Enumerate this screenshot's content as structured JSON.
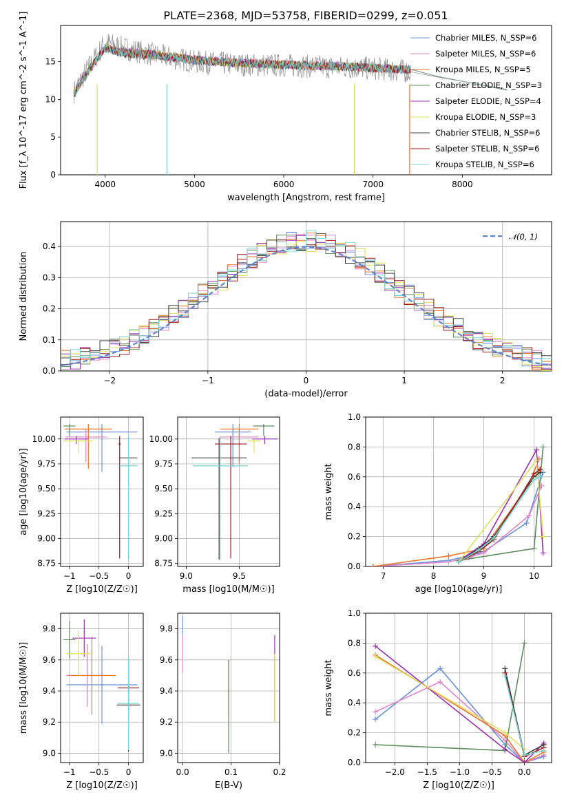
{
  "figure": {
    "title": "PLATE=2368, MJD=53758, FIBERID=0299, z=0.051"
  },
  "colors": {
    "data": "#808080",
    "models": [
      "#6a8fdb",
      "#e083c8",
      "#e8762a",
      "#5e8c5e",
      "#9b2fb4",
      "#dfe05a",
      "#404040",
      "#9e1c1c",
      "#79d6d6"
    ],
    "normal": "#5b84cf"
  },
  "chart_data": [
    {
      "id": "spectrum",
      "type": "line",
      "xlabel": "wavelength [Angstrom, rest frame]",
      "ylabel": "Flux [f_λ 10^-17 erg cm^-2 s^-1 A^-1]",
      "xlim": [
        3500,
        9000
      ],
      "ylim": [
        0,
        19.8
      ],
      "xticks": [
        4000,
        5000,
        6000,
        7000,
        8000
      ],
      "yticks": [
        0,
        5,
        10,
        15
      ],
      "grid": false,
      "legend_position": "top-right",
      "x": [
        3650,
        3800,
        4000,
        4200,
        4500,
        5000,
        5500,
        6000,
        6500,
        6800,
        7000,
        7300,
        7450,
        7700,
        8000,
        8500
      ],
      "series": [
        {
          "name": "data",
          "values": [
            11.0,
            14.0,
            17.5,
            16.8,
            16.0,
            15.0,
            14.6,
            14.5,
            14.3,
            14.2,
            14.1,
            13.8,
            13.6,
            13.0,
            12.4,
            11.2
          ]
        },
        {
          "name": "Chabrier MILES, N_SSP=6",
          "values": [
            10.8,
            13.6,
            16.8,
            16.2,
            15.9,
            15.2,
            14.8,
            14.6,
            14.4,
            14.3,
            14.2,
            14.0,
            13.9,
            13.1,
            12.4,
            11.3
          ]
        },
        {
          "name": "Salpeter MILES, N_SSP=6",
          "values": [
            10.8,
            13.6,
            16.8,
            16.2,
            15.9,
            15.2,
            14.8,
            14.6,
            14.4,
            14.3,
            14.2,
            14.0,
            13.9,
            13.1,
            12.4,
            11.3
          ]
        },
        {
          "name": "Kroupa MILES, N_SSP=5",
          "values": [
            10.7,
            13.5,
            16.9,
            16.2,
            15.9,
            15.2,
            14.8,
            14.6,
            14.4,
            14.3,
            14.2,
            14.0,
            13.9,
            13.1,
            12.4,
            11.3
          ]
        },
        {
          "name": "Chabrier ELODIE, N_SSP=3",
          "values": [
            10.9,
            13.7,
            16.9,
            16.3,
            16.0,
            15.3,
            14.8,
            14.6,
            14.4,
            14.3,
            14.2,
            14.0,
            13.9,
            13.1,
            12.4,
            11.3
          ]
        },
        {
          "name": "Salpeter ELODIE, N_SSP=4",
          "values": [
            10.9,
            13.7,
            16.9,
            16.3,
            16.0,
            15.3,
            14.8,
            14.6,
            14.4,
            14.3,
            14.2,
            14.0,
            13.9,
            13.1,
            12.4,
            11.3
          ]
        },
        {
          "name": "Kroupa ELODIE, N_SSP=3",
          "values": [
            10.9,
            13.7,
            16.9,
            16.3,
            16.0,
            15.3,
            14.8,
            14.6,
            14.4,
            14.3,
            14.2,
            14.0,
            13.9,
            13.1,
            12.4,
            11.3
          ]
        },
        {
          "name": "Chabrier STELIB, N_SSP=6",
          "values": [
            10.7,
            13.6,
            16.8,
            16.1,
            15.9,
            15.2,
            14.8,
            14.6,
            14.4,
            14.3,
            14.2,
            14.0,
            13.9,
            13.1,
            12.4,
            11.3
          ]
        },
        {
          "name": "Salpeter STELIB, N_SSP=6",
          "values": [
            10.7,
            13.6,
            16.8,
            16.1,
            15.9,
            15.2,
            14.8,
            14.6,
            14.4,
            14.3,
            14.2,
            14.0,
            13.9,
            13.1,
            12.4,
            11.3
          ]
        },
        {
          "name": "Kroupa STELIB, N_SSP=6",
          "values": [
            10.7,
            13.6,
            16.8,
            16.1,
            15.9,
            15.2,
            14.8,
            14.6,
            14.4,
            14.3,
            14.2,
            14.0,
            13.9,
            13.1,
            12.4,
            11.3
          ]
        }
      ]
    },
    {
      "id": "residuals",
      "type": "line",
      "xlabel": "(data-model)/error",
      "ylabel": "Normed distribution",
      "xlim": [
        -2.5,
        2.5
      ],
      "ylim": [
        0,
        0.48
      ],
      "xticks": [
        -2,
        -1,
        0,
        1,
        2
      ],
      "yticks": [
        0.0,
        0.1,
        0.2,
        0.3,
        0.4
      ],
      "grid": true,
      "legend_position": "top-right",
      "legend": "N(0,1)",
      "x": [
        -2.5,
        -2.25,
        -2.0,
        -1.75,
        -1.5,
        -1.25,
        -1.0,
        -0.75,
        -0.5,
        -0.25,
        0.0,
        0.25,
        0.5,
        0.75,
        1.0,
        1.25,
        1.5,
        1.75,
        2.0,
        2.25,
        2.5
      ],
      "normal_values": [
        0.018,
        0.032,
        0.054,
        0.086,
        0.13,
        0.183,
        0.242,
        0.301,
        0.352,
        0.387,
        0.399,
        0.387,
        0.352,
        0.301,
        0.242,
        0.183,
        0.13,
        0.086,
        0.054,
        0.032,
        0.018
      ]
    },
    {
      "id": "age-vs-Z",
      "type": "scatter",
      "xlabel": "Z [log10(Z/Z☉)]",
      "ylabel": "age  [log10(age/yr)]",
      "xlim": [
        -1.15,
        0.25
      ],
      "ylim": [
        8.72,
        10.22
      ],
      "xticks": [
        -1,
        -0.5,
        0
      ],
      "yticks": [
        8.75,
        9.0,
        9.25,
        9.5,
        9.75,
        10.0
      ],
      "grid": true,
      "points": [
        {
          "x": -0.45,
          "y": 10.07,
          "x_err": [
            0.6,
            0.6
          ],
          "y_err": [
            0.4,
            0.08
          ]
        },
        {
          "x": -0.72,
          "y": 10.02,
          "x_err": [
            0.35,
            0.35
          ],
          "y_err": [
            0.25,
            0.08
          ]
        },
        {
          "x": -0.68,
          "y": 10.1,
          "x_err": [
            0.4,
            0.4
          ],
          "y_err": [
            0.4,
            0.05
          ]
        },
        {
          "x": -1.0,
          "y": 10.13,
          "x_err": [
            0.1,
            0.1
          ],
          "y_err": [
            0.1,
            0.02
          ]
        },
        {
          "x": -0.88,
          "y": 10.0,
          "x_err": [
            0.2,
            0.2
          ],
          "y_err": [
            0.05,
            0.03
          ]
        },
        {
          "x": -0.85,
          "y": 9.98,
          "x_err": [
            0.25,
            0.25
          ],
          "y_err": [
            0.12,
            0.02
          ]
        },
        {
          "x": 0.0,
          "y": 9.81,
          "x_err": [
            0.15,
            0.15
          ],
          "y_err": [
            1.02,
            0.2
          ]
        },
        {
          "x": -0.15,
          "y": 9.95,
          "x_err": [
            0.02,
            0.02
          ],
          "y_err": [
            1.15,
            0.08
          ]
        },
        {
          "x": 0.0,
          "y": 9.73,
          "x_err": [
            0.15,
            0.15
          ],
          "y_err": [
            0.95,
            0.3
          ]
        }
      ]
    },
    {
      "id": "age-vs-mass",
      "type": "scatter",
      "xlabel": "mass [log10(M/M☉)]",
      "ylabel": "",
      "xlim": [
        8.92,
        9.88
      ],
      "ylim": [
        8.72,
        10.22
      ],
      "xticks": [
        9.0,
        9.5
      ],
      "yticks": [
        8.75,
        9.0,
        9.25,
        9.5,
        9.75,
        10.0
      ],
      "grid": true,
      "points": [
        {
          "x": 9.44,
          "y": 10.07,
          "x_err": [
            0.17,
            0.17
          ],
          "y_err": [
            0.35,
            0.08
          ]
        },
        {
          "x": 9.5,
          "y": 10.02,
          "x_err": [
            0.18,
            0.18
          ],
          "y_err": [
            0.25,
            0.08
          ]
        },
        {
          "x": 9.5,
          "y": 10.1,
          "x_err": [
            0.18,
            0.18
          ],
          "y_err": [
            0.35,
            0.05
          ]
        },
        {
          "x": 9.73,
          "y": 10.13,
          "x_err": [
            0.1,
            0.1
          ],
          "y_err": [
            0.1,
            0.02
          ]
        },
        {
          "x": 9.74,
          "y": 10.0,
          "x_err": [
            0.12,
            0.12
          ],
          "y_err": [
            0.05,
            0.03
          ]
        },
        {
          "x": 9.64,
          "y": 9.98,
          "x_err": [
            0.06,
            0.06
          ],
          "y_err": [
            0.12,
            0.02
          ]
        },
        {
          "x": 9.31,
          "y": 9.81,
          "x_err": [
            0.26,
            0.26
          ],
          "y_err": [
            1.02,
            0.2
          ]
        },
        {
          "x": 9.42,
          "y": 9.95,
          "x_err": [
            0.15,
            0.15
          ],
          "y_err": [
            1.15,
            0.08
          ]
        },
        {
          "x": 9.32,
          "y": 9.73,
          "x_err": [
            0.26,
            0.26
          ],
          "y_err": [
            0.95,
            0.3
          ]
        }
      ]
    },
    {
      "id": "weight-vs-age",
      "type": "line",
      "xlabel": "age  [log10(age/yr)]",
      "ylabel": "mass weight",
      "xlim": [
        6.65,
        10.35
      ],
      "ylim": [
        0,
        1.0
      ],
      "xticks": [
        7,
        8,
        9,
        10
      ],
      "yticks": [
        0.0,
        0.2,
        0.4,
        0.6,
        0.8,
        1.0
      ],
      "grid": true,
      "series": [
        {
          "name": "Chabrier MILES, N_SSP=6",
          "x": [
            6.8,
            8.3,
            8.7,
            9.0,
            9.85,
            10.18
          ],
          "values": [
            0.0,
            0.04,
            0.07,
            0.1,
            0.29,
            0.63
          ]
        },
        {
          "name": "Salpeter MILES, N_SSP=6",
          "x": [
            6.8,
            8.3,
            8.7,
            9.0,
            9.9,
            10.15
          ],
          "values": [
            0.0,
            0.03,
            0.06,
            0.09,
            0.34,
            0.54
          ]
        },
        {
          "name": "Kroupa MILES, N_SSP=5",
          "x": [
            6.8,
            8.3,
            9.0,
            9.9,
            10.1
          ],
          "values": [
            0.0,
            0.07,
            0.12,
            0.55,
            0.72
          ]
        },
        {
          "name": "Chabrier ELODIE, N_SSP=3",
          "x": [
            8.5,
            10.0,
            10.18
          ],
          "values": [
            0.04,
            0.12,
            0.8
          ]
        },
        {
          "name": "Salpeter ELODIE, N_SSP=4",
          "x": [
            8.6,
            9.0,
            10.05,
            10.18
          ],
          "values": [
            0.06,
            0.15,
            0.78,
            0.09
          ]
        },
        {
          "name": "Kroupa ELODIE, N_SSP=3",
          "x": [
            8.5,
            10.05,
            10.18
          ],
          "values": [
            0.03,
            0.71,
            0.2
          ]
        },
        {
          "name": "Chabrier STELIB, N_SSP=6",
          "x": [
            8.5,
            8.9,
            9.2,
            10.0,
            10.12
          ],
          "values": [
            0.03,
            0.12,
            0.2,
            0.6,
            0.63
          ]
        },
        {
          "name": "Salpeter STELIB, N_SSP=6",
          "x": [
            8.5,
            8.9,
            9.2,
            10.0,
            10.12
          ],
          "values": [
            0.03,
            0.1,
            0.18,
            0.62,
            0.65
          ]
        },
        {
          "name": "Kroupa STELIB, N_SSP=6",
          "x": [
            8.5,
            8.9,
            9.2,
            10.0,
            10.12
          ],
          "values": [
            0.03,
            0.11,
            0.19,
            0.58,
            0.6
          ]
        }
      ]
    },
    {
      "id": "mass-vs-Z",
      "type": "scatter",
      "xlabel": "Z [log10(Z/Z☉)]",
      "ylabel": "mass [log10(M/M☉)]",
      "xlim": [
        -1.15,
        0.25
      ],
      "ylim": [
        8.94,
        9.9
      ],
      "xticks": [
        -1,
        -0.5,
        0
      ],
      "yticks": [
        9.0,
        9.2,
        9.4,
        9.6,
        9.8
      ],
      "grid": true,
      "points": [
        {
          "x": -0.45,
          "y": 9.44,
          "x_err": [
            0.6,
            0.6
          ],
          "y_err": [
            0.25,
            0.25
          ]
        },
        {
          "x": -0.7,
          "y": 9.5,
          "x_err": [
            0.35,
            0.35
          ],
          "y_err": [
            0.2,
            0.2
          ]
        },
        {
          "x": -0.62,
          "y": 9.5,
          "x_err": [
            0.4,
            0.4
          ],
          "y_err": [
            0.25,
            0.25
          ]
        },
        {
          "x": -1.0,
          "y": 9.73,
          "x_err": [
            0.1,
            0.1
          ],
          "y_err": [
            0.12,
            0.12
          ]
        },
        {
          "x": -0.75,
          "y": 9.74,
          "x_err": [
            0.2,
            0.2
          ],
          "y_err": [
            0.12,
            0.12
          ]
        },
        {
          "x": -0.85,
          "y": 9.64,
          "x_err": [
            0.2,
            0.2
          ],
          "y_err": [
            0.15,
            0.15
          ]
        },
        {
          "x": 0.0,
          "y": 9.31,
          "x_err": [
            0.2,
            0.2
          ],
          "y_err": [
            0.3,
            0.3
          ]
        },
        {
          "x": 0.0,
          "y": 9.42,
          "x_err": [
            0.18,
            0.18
          ],
          "y_err": [
            0.18,
            0.18
          ]
        },
        {
          "x": 0.0,
          "y": 9.32,
          "x_err": [
            0.18,
            0.18
          ],
          "y_err": [
            0.3,
            0.3
          ]
        }
      ]
    },
    {
      "id": "mass-vs-EBV",
      "type": "scatter",
      "xlabel": "E(B-V)",
      "ylabel": "",
      "xlim": [
        -0.01,
        0.2
      ],
      "ylim": [
        8.94,
        9.9
      ],
      "xticks": [
        0.0,
        0.1,
        0.2
      ],
      "yticks": [
        9.0,
        9.2,
        9.4,
        9.6,
        9.8
      ],
      "grid": true,
      "points": [
        {
          "x": 0.0,
          "y": 9.82,
          "y_err": [
            0.06,
            0.06
          ]
        },
        {
          "x": 0.0,
          "y": 9.64,
          "y_err": [
            0.12,
            0.12
          ]
        },
        {
          "x": 0.095,
          "y": 9.42,
          "y_err": [
            0.18,
            0.18
          ]
        },
        {
          "x": 0.095,
          "y": 9.3,
          "y_err": [
            0.3,
            0.3
          ]
        },
        {
          "x": 0.19,
          "y": 9.48,
          "y_err": [
            0.28,
            0.28
          ]
        },
        {
          "x": 0.19,
          "y": 9.42,
          "y_err": [
            0.22,
            0.22
          ]
        }
      ]
    },
    {
      "id": "weight-vs-Z",
      "type": "line",
      "xlabel": "Z [log10(Z/Z☉)]",
      "ylabel": "mass weight",
      "xlim": [
        -2.45,
        0.42
      ],
      "ylim": [
        0,
        1.0
      ],
      "xticks": [
        -2.0,
        -1.5,
        -1.0,
        -0.5,
        0.0
      ],
      "yticks": [
        0.0,
        0.2,
        0.4,
        0.6,
        0.8,
        1.0
      ],
      "grid": true,
      "series": [
        {
          "name": "Chabrier MILES, N_SSP=6",
          "x": [
            -2.3,
            -1.3,
            -0.3,
            0.0,
            0.3
          ],
          "values": [
            0.29,
            0.63,
            0.12,
            0.0,
            0.04
          ]
        },
        {
          "name": "Salpeter MILES, N_SSP=6",
          "x": [
            -2.3,
            -1.3,
            -0.3,
            0.0,
            0.3
          ],
          "values": [
            0.34,
            0.54,
            0.15,
            0.0,
            0.05
          ]
        },
        {
          "name": "Kroupa MILES, N_SSP=5",
          "x": [
            -2.3,
            -0.3,
            0.0,
            0.3
          ],
          "values": [
            0.72,
            0.18,
            0.0,
            0.07
          ]
        },
        {
          "name": "Chabrier ELODIE, N_SSP=3",
          "x": [
            -2.3,
            -0.3,
            0.0
          ],
          "values": [
            0.12,
            0.08,
            0.8
          ]
        },
        {
          "name": "Salpeter ELODIE, N_SSP=4",
          "x": [
            -2.3,
            -0.3,
            0.0,
            0.3
          ],
          "values": [
            0.78,
            0.09,
            0.0,
            0.13
          ]
        },
        {
          "name": "Kroupa ELODIE, N_SSP=3",
          "x": [
            -2.3,
            -0.3,
            0.0
          ],
          "values": [
            0.71,
            0.2,
            0.09
          ]
        },
        {
          "name": "Chabrier STELIB, N_SSP=6",
          "x": [
            -0.3,
            0.0,
            0.3
          ],
          "values": [
            0.63,
            0.05,
            0.12
          ]
        },
        {
          "name": "Salpeter STELIB, N_SSP=6",
          "x": [
            -0.3,
            0.0,
            0.3
          ],
          "values": [
            0.6,
            0.04,
            0.1
          ]
        },
        {
          "name": "Kroupa STELIB, N_SSP=6",
          "x": [
            -0.3,
            0.0,
            0.3
          ],
          "values": [
            0.58,
            0.05,
            0.08
          ]
        }
      ]
    }
  ]
}
